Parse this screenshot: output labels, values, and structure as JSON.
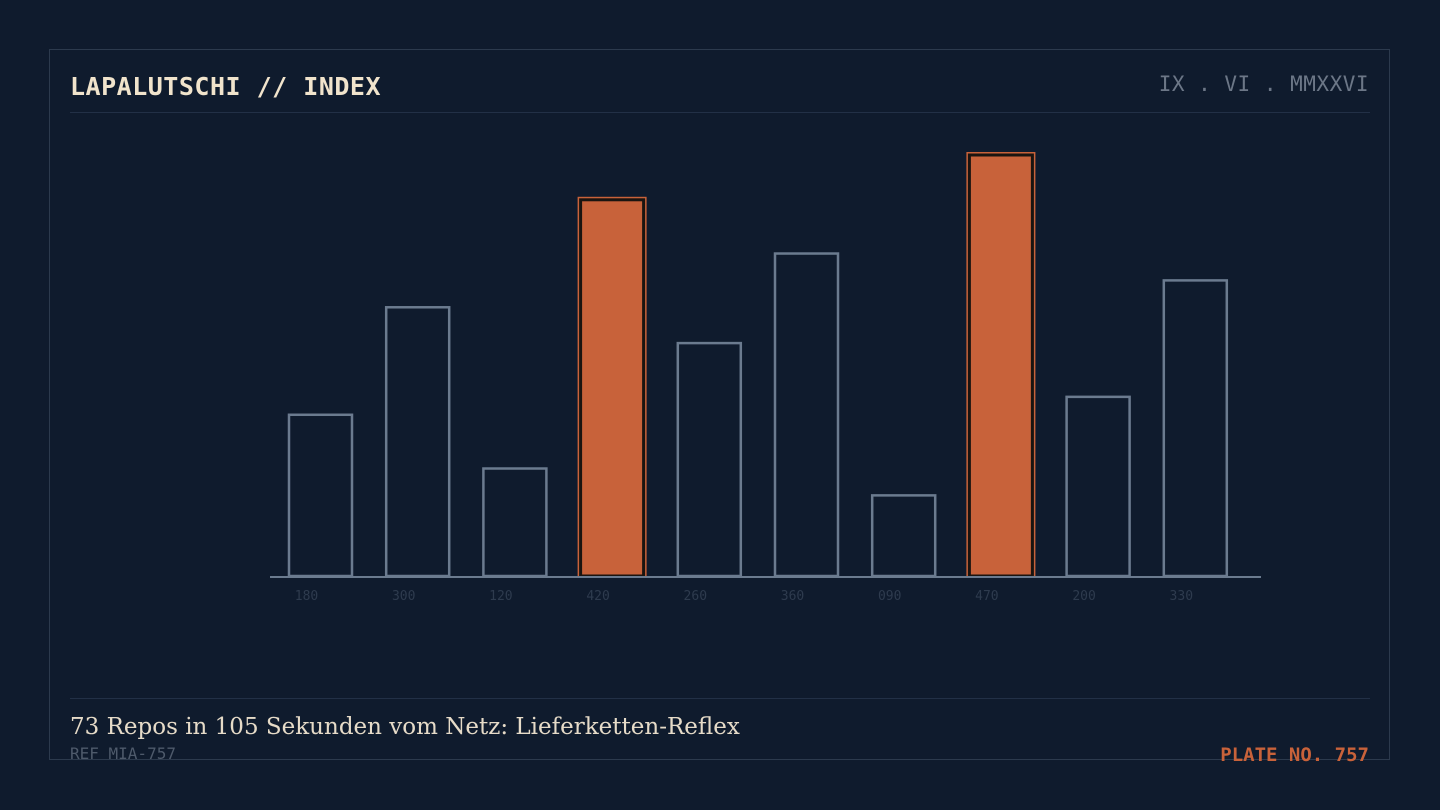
{
  "header": {
    "title": "LAPALUTSCHI // INDEX",
    "date": "IX . VI . MMXXVI"
  },
  "footer": {
    "caption": "73 Repos in 105 Sekunden vom Netz: Lieferketten-Reflex",
    "ref": "REF MIA-757",
    "plate": "PLATE NO. 757"
  },
  "colors": {
    "background": "#0f1b2d",
    "outline": "#6b7b8f",
    "highlight": "#c8623a",
    "tick_label": "#2e3b4e",
    "baseline": "#6b7b8f"
  },
  "chart_data": {
    "type": "bar",
    "categories": [
      "180",
      "300",
      "120",
      "420",
      "260",
      "360",
      "090",
      "470",
      "200",
      "330"
    ],
    "values": [
      180,
      300,
      120,
      420,
      260,
      360,
      90,
      470,
      200,
      330
    ],
    "highlighted": [
      false,
      false,
      false,
      true,
      false,
      false,
      false,
      true,
      false,
      false
    ],
    "ylim": [
      0,
      470
    ],
    "grid": false,
    "legend": "none"
  }
}
